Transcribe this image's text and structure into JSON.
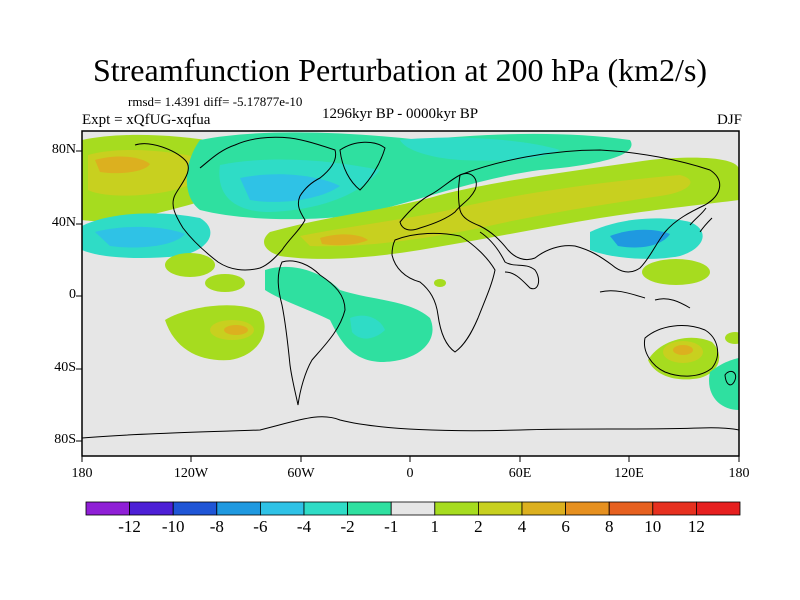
{
  "title": "Streamfunction Perturbation at 200 hPa (km2/s)",
  "stats": "rmsd= 1.4391 diff= -5.17877e-10",
  "experiment": "Expt = xQfUG-xqfua",
  "period": "1296kyr BP - 0000kyr BP",
  "season": "DJF",
  "lat_ticks": [
    "80N",
    "40N",
    "0",
    "40S",
    "80S"
  ],
  "lon_ticks": [
    "180",
    "120W",
    "60W",
    "0",
    "60E",
    "120E",
    "180"
  ],
  "colorbar": {
    "labels": [
      "-12",
      "-10",
      "-8",
      "-6",
      "-4",
      "-2",
      "-1",
      "1",
      "2",
      "4",
      "6",
      "8",
      "10",
      "12"
    ],
    "colors": [
      "#8f1fd6",
      "#4d1fd6",
      "#1f55d6",
      "#1f99e0",
      "#2fc2e6",
      "#2fdcc6",
      "#2fe0a0",
      "#e6e6e6",
      "#a6dc1f",
      "#c8d01f",
      "#dcb01f",
      "#e6901f",
      "#e6601f",
      "#e6301f",
      "#e61f1f"
    ]
  },
  "background_color": "#e6e6e6"
}
